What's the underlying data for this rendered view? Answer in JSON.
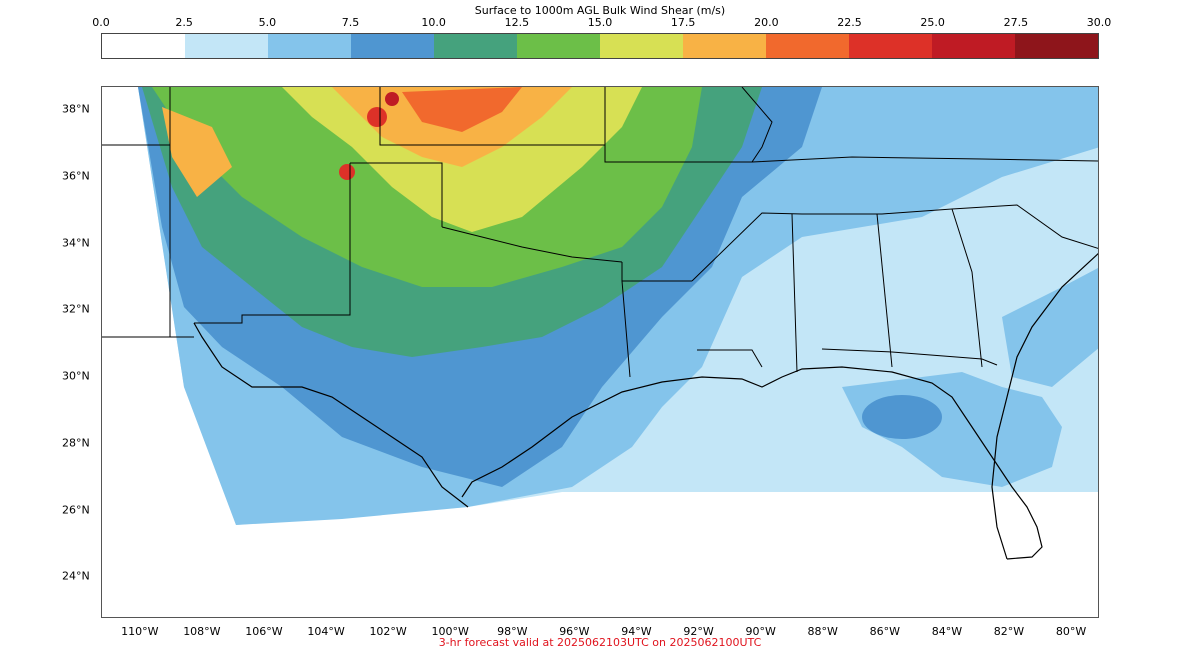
{
  "colorbar": {
    "title": "Surface to 1000m AGL Bulk Wind Shear (m/s)",
    "ticks": [
      "0.0",
      "2.5",
      "5.0",
      "7.5",
      "10.0",
      "12.5",
      "15.0",
      "17.5",
      "20.0",
      "22.5",
      "25.0",
      "27.5",
      "30.0"
    ],
    "colors": [
      "#ffffff",
      "#c3e6f7",
      "#84c4eb",
      "#4f96d1",
      "#45a27d",
      "#6cbf48",
      "#d7e054",
      "#f8b245",
      "#f1692d",
      "#dd3128",
      "#bf1b24",
      "#8e151b"
    ]
  },
  "map": {
    "lat_labels": [
      "38°N",
      "36°N",
      "34°N",
      "32°N",
      "30°N",
      "28°N",
      "26°N",
      "24°N"
    ],
    "lon_labels": [
      "110°W",
      "108°W",
      "106°W",
      "104°W",
      "102°W",
      "100°W",
      "98°W",
      "96°W",
      "94°W",
      "92°W",
      "90°W",
      "88°W",
      "86°W",
      "84°W",
      "82°W",
      "80°W"
    ],
    "extent": {
      "lon_min": -111.25,
      "lon_max": -79.1,
      "lat_min": 22.75,
      "lat_max": 38.7
    }
  },
  "footer": {
    "text": "3-hr forecast valid at 2025062103UTC on 2025062100UTC"
  }
}
